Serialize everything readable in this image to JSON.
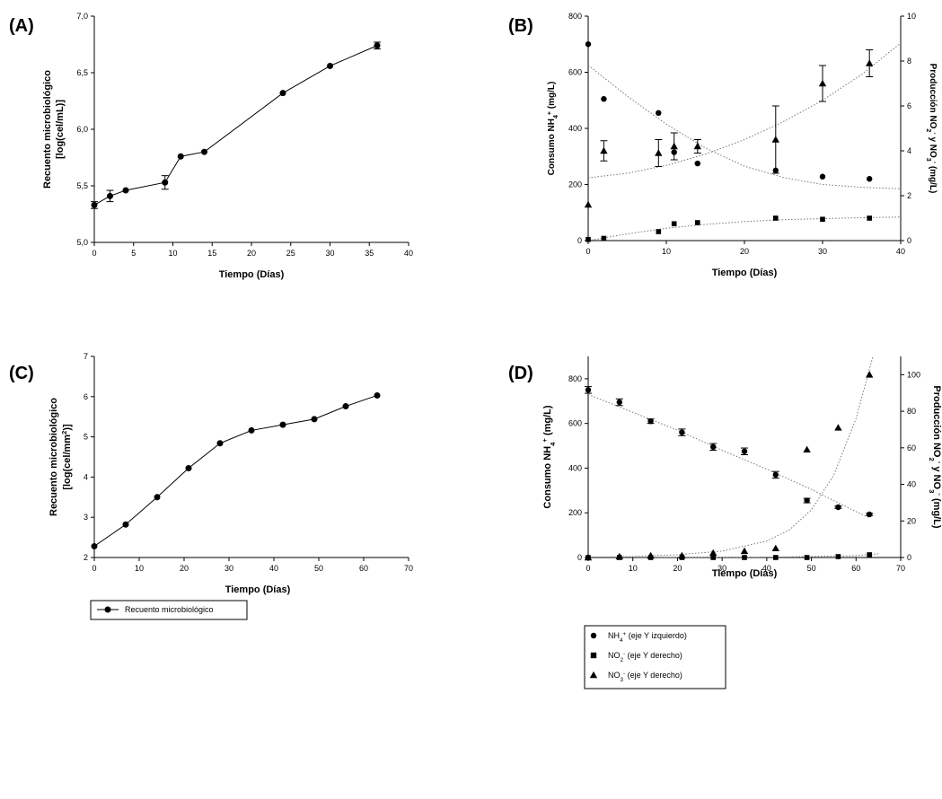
{
  "panels": [
    {
      "letter": "(A)"
    },
    {
      "letter": "(B)"
    },
    {
      "letter": "(C)"
    },
    {
      "letter": "(D)"
    }
  ],
  "chart_data": [
    {
      "id": "A",
      "type": "line",
      "xlabel": "Tiempo (Días)",
      "ylabel_lines": [
        "Recuento microbiológico",
        "[log(cel/mL)]"
      ],
      "xlim": [
        0,
        40
      ],
      "ylim": [
        5.0,
        7.0
      ],
      "xticks": [
        "0",
        "5",
        "10",
        "15",
        "20",
        "25",
        "30",
        "35",
        "40"
      ],
      "yticks": [
        "5,0",
        "5,5",
        "6,0",
        "6,5",
        "7,0"
      ],
      "series": [
        {
          "marker": "circle",
          "x": [
            0,
            2,
            4,
            9,
            11,
            14,
            24,
            30,
            36
          ],
          "y": [
            5.33,
            5.41,
            5.46,
            5.53,
            5.76,
            5.8,
            6.32,
            6.56,
            6.74
          ],
          "err": [
            0.03,
            0.05,
            0.0,
            0.06,
            0.0,
            0.0,
            0.0,
            0.0,
            0.03
          ]
        }
      ],
      "grid": false
    },
    {
      "id": "B",
      "type": "scatter",
      "xlabel": "Tiempo (Días)",
      "ylabel_left": "Consumo NH4+ (mg/L)",
      "ylabel_right": "Producción NO2- y NO3- (mg/L)",
      "xlim": [
        0,
        40
      ],
      "ylim_left": [
        0,
        800
      ],
      "ylim_right": [
        0,
        10
      ],
      "xticks": [
        "0",
        "10",
        "20",
        "30",
        "40"
      ],
      "yticks_left": [
        "0",
        "200",
        "400",
        "600",
        "800"
      ],
      "yticks_right": [
        "0",
        "2",
        "4",
        "6",
        "8",
        "10"
      ],
      "series": [
        {
          "name": "NH4+",
          "marker": "circle",
          "axis": "left",
          "x": [
            0,
            2,
            9,
            11,
            14,
            24,
            30,
            36
          ],
          "y": [
            700,
            505,
            455,
            315,
            275,
            250,
            228,
            220
          ],
          "err": []
        },
        {
          "name": "NO2-",
          "marker": "square",
          "axis": "right",
          "x": [
            0,
            2,
            9,
            11,
            14,
            24,
            30,
            36
          ],
          "y": [
            0.05,
            0.1,
            0.4,
            0.75,
            0.8,
            1.0,
            0.95,
            1.0
          ],
          "err": []
        },
        {
          "name": "NO3-",
          "marker": "triangle",
          "axis": "right",
          "x": [
            0,
            2,
            9,
            11,
            14,
            24,
            30,
            36
          ],
          "y": [
            1.6,
            4.0,
            3.9,
            4.2,
            4.2,
            4.5,
            7.0,
            7.9
          ],
          "err": [
            0.0,
            0.45,
            0.6,
            0.6,
            0.3,
            1.5,
            0.8,
            0.6
          ]
        }
      ],
      "trendlines": [
        {
          "axis": "left",
          "x": [
            0,
            5,
            10,
            15,
            20,
            25,
            30,
            35,
            40
          ],
          "y": [
            625,
            515,
            415,
            330,
            265,
            225,
            200,
            190,
            185
          ]
        },
        {
          "axis": "right",
          "x": [
            0,
            5,
            10,
            15,
            20,
            25,
            30,
            35,
            40
          ],
          "y": [
            2.8,
            3.0,
            3.35,
            3.85,
            4.5,
            5.3,
            6.25,
            7.4,
            8.8
          ]
        },
        {
          "axis": "right",
          "x": [
            0,
            5,
            10,
            15,
            20,
            25,
            30,
            35,
            40
          ],
          "y": [
            0.0,
            0.3,
            0.55,
            0.72,
            0.85,
            0.93,
            0.98,
            1.02,
            1.05
          ]
        }
      ],
      "grid": false
    },
    {
      "id": "C",
      "type": "line",
      "xlabel": "Tiempo (Días)",
      "ylabel_lines": [
        "Recuento microbiológico",
        "[log(cel/mm2)]"
      ],
      "xlim": [
        0,
        70
      ],
      "ylim": [
        2,
        7
      ],
      "xticks": [
        "0",
        "10",
        "20",
        "30",
        "40",
        "50",
        "60",
        "70"
      ],
      "yticks": [
        "2",
        "3",
        "4",
        "5",
        "6",
        "7"
      ],
      "series": [
        {
          "name": "Recuento microbiológico",
          "marker": "circle",
          "x": [
            0,
            7,
            14,
            21,
            28,
            35,
            42,
            49,
            56,
            63
          ],
          "y": [
            2.28,
            2.82,
            3.5,
            4.22,
            4.84,
            5.16,
            5.3,
            5.44,
            5.76,
            6.03
          ]
        }
      ],
      "legend": [
        "Recuento microbiológico"
      ],
      "grid": false
    },
    {
      "id": "D",
      "type": "scatter",
      "xlabel": "Tiempo (Días)",
      "ylabel_left": "Consumo NH4+ (mg/L)",
      "ylabel_right": "Producción NO2- y NO3- (mg/L)",
      "xlim": [
        0,
        70
      ],
      "ylim_left": [
        0,
        900
      ],
      "ylim_right": [
        0,
        110
      ],
      "xticks": [
        "0",
        "10",
        "20",
        "30",
        "40",
        "50",
        "60",
        "70"
      ],
      "yticks_left": [
        "0",
        "200",
        "400",
        "600",
        "800"
      ],
      "yticks_right": [
        "0",
        "20",
        "40",
        "60",
        "80",
        "100"
      ],
      "series": [
        {
          "name": "NH4+ (eje Y izquierdo)",
          "marker": "circle",
          "axis": "left",
          "x": [
            0,
            7,
            14,
            21,
            28,
            35,
            42,
            49,
            56,
            63
          ],
          "y": [
            750,
            695,
            610,
            560,
            495,
            475,
            370,
            255,
            225,
            193
          ],
          "err": [
            15,
            15,
            10,
            15,
            15,
            15,
            15,
            10,
            5,
            5
          ]
        },
        {
          "name": "NO2- (eje Y derecho)",
          "marker": "square",
          "axis": "right",
          "x": [
            0,
            7,
            14,
            21,
            28,
            35,
            42,
            49,
            56,
            63
          ],
          "y": [
            0,
            0,
            0,
            0,
            0,
            0,
            0,
            0,
            0.5,
            1.5
          ],
          "err": []
        },
        {
          "name": "NO3- (eje Y derecho)",
          "marker": "triangle",
          "axis": "right",
          "x": [
            0,
            7,
            14,
            21,
            28,
            35,
            42,
            49,
            56,
            63
          ],
          "y": [
            0,
            0.5,
            1,
            1,
            2.5,
            3.5,
            5,
            59,
            71,
            100
          ],
          "err": []
        }
      ],
      "trendlines": [
        {
          "axis": "left",
          "x": [
            0,
            10,
            20,
            30,
            40,
            50,
            60,
            63
          ],
          "y": [
            730,
            650,
            570,
            480,
            395,
            305,
            205,
            178
          ]
        },
        {
          "axis": "right",
          "x": [
            0,
            10,
            20,
            30,
            40,
            45,
            50,
            55,
            60,
            64
          ],
          "y": [
            0.2,
            0.5,
            1.5,
            3.5,
            9,
            15,
            26,
            45,
            76,
            112
          ]
        },
        {
          "axis": "right",
          "x": [
            0,
            20,
            40,
            60,
            65
          ],
          "y": [
            0,
            0,
            0.1,
            1,
            2
          ]
        }
      ],
      "legend": [
        "NH4+ (eje Y izquierdo)",
        "NO2- (eje Y derecho)",
        "NO3- (eje Y derecho)"
      ],
      "grid": false
    }
  ]
}
